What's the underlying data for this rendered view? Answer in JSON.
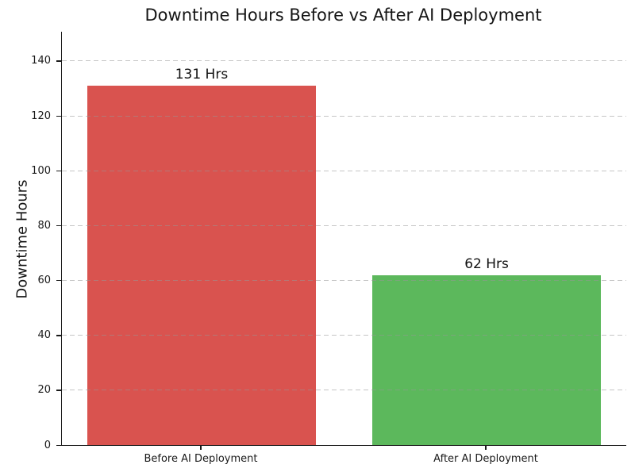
{
  "figure": {
    "background": "#ffffff",
    "text_color": "#1a1a1a"
  },
  "chart_data": {
    "type": "bar",
    "title": "Downtime Hours Before vs After AI Deployment",
    "xlabel": "",
    "ylabel": "Downtime Hours",
    "categories": [
      "Before AI Deployment",
      "After AI Deployment"
    ],
    "values": [
      131,
      62
    ],
    "bar_labels": [
      "131 Hrs",
      "62 Hrs"
    ],
    "bar_colors": [
      "#d9534f",
      "#5cb85c"
    ],
    "yticks": [
      0,
      20,
      40,
      60,
      80,
      100,
      120,
      140
    ],
    "ylim": [
      0,
      150.7
    ],
    "bar_width_fraction": 0.8,
    "x_edge_pad": 0.49,
    "grid": {
      "axis": "y",
      "style": "dashed",
      "color": "#b0b0b0",
      "over_bars": true
    },
    "legend": "none"
  }
}
